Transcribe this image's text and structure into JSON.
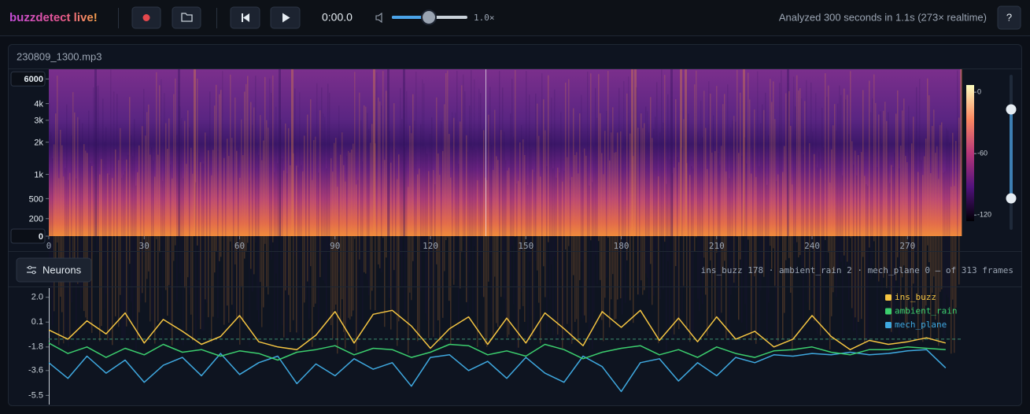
{
  "header": {
    "brand": "buzzdetect live!",
    "time": "0:00.0",
    "speed": "1.0×",
    "status": "Analyzed 300 seconds in 1.1s (273× realtime)",
    "help": "?"
  },
  "spectrogram": {
    "file": "230809_1300.mp3",
    "scale": "mel",
    "xlim": [
      0,
      287
    ],
    "xticks": [
      0,
      30,
      60,
      90,
      120,
      150,
      180,
      210,
      240,
      270
    ],
    "ylim": [
      0,
      7000
    ],
    "yticks": [
      6000,
      {
        "value": 4000,
        "label": "4k"
      },
      {
        "value": 3000,
        "label": "3k"
      },
      {
        "value": 2000,
        "label": "2k"
      },
      {
        "value": 1000,
        "label": "1k"
      },
      500,
      200,
      0
    ],
    "colorbar": {
      "lim": [
        -126,
        7
      ],
      "ticks": [
        0,
        -60,
        -120
      ]
    }
  },
  "neurons": {
    "button": "Neurons",
    "summary": "ins_buzz 178 · ambient_rain 2 · mech_plane 0 — of 313 frames"
  },
  "chart_data": {
    "type": "line",
    "x": [
      0,
      6,
      12,
      18,
      24,
      30,
      36,
      42,
      48,
      54,
      60,
      66,
      72,
      78,
      84,
      90,
      96,
      102,
      108,
      114,
      120,
      126,
      132,
      138,
      144,
      150,
      156,
      162,
      168,
      174,
      180,
      186,
      192,
      198,
      204,
      210,
      216,
      222,
      228,
      234,
      240,
      246,
      252,
      258,
      264,
      270,
      276,
      282
    ],
    "xlim": [
      0,
      287
    ],
    "ylim": [
      -6.2,
      2.7
    ],
    "yticks": [
      {
        "value": 2,
        "label": "2.0"
      },
      0.1,
      -1.8,
      -3.6,
      -5.5
    ],
    "threshold": -1.2,
    "legend": "top-right",
    "series": [
      {
        "name": "ins_buzz",
        "color": "#f5c542",
        "values": [
          -0.5,
          -1.2,
          0.2,
          -0.8,
          0.8,
          -1.5,
          0.3,
          -0.6,
          -1.6,
          -1.0,
          0.6,
          -1.4,
          -1.8,
          -2.0,
          -0.9,
          0.9,
          -1.5,
          0.7,
          1.0,
          -0.2,
          -1.9,
          -0.4,
          0.5,
          -1.6,
          0.4,
          -1.5,
          0.8,
          -0.4,
          -1.7,
          0.9,
          -0.3,
          1.0,
          -1.3,
          0.4,
          -1.4,
          0.5,
          -1.2,
          -0.6,
          -1.8,
          -1.2,
          0.6,
          -1.0,
          -2.0,
          -1.3,
          -1.6,
          -1.4,
          -1.1,
          -1.5
        ]
      },
      {
        "name": "ambient_rain",
        "color": "#3ccf6e",
        "values": [
          -1.5,
          -2.3,
          -1.8,
          -2.6,
          -1.9,
          -2.4,
          -1.6,
          -2.2,
          -2.0,
          -2.5,
          -2.1,
          -2.3,
          -2.8,
          -2.2,
          -2.0,
          -1.7,
          -2.4,
          -1.9,
          -2.0,
          -2.6,
          -2.2,
          -1.6,
          -1.7,
          -2.4,
          -2.1,
          -2.5,
          -1.6,
          -2.0,
          -2.7,
          -2.2,
          -1.9,
          -1.7,
          -2.4,
          -2.0,
          -2.6,
          -1.8,
          -2.3,
          -2.6,
          -2.1,
          -2.0,
          -1.8,
          -2.2,
          -2.4,
          -2.0,
          -2.0,
          -1.8,
          -1.9,
          -2.0
        ]
      },
      {
        "name": "mech_plane",
        "color": "#3fa9e0",
        "values": [
          -3.0,
          -4.2,
          -2.5,
          -3.8,
          -2.8,
          -4.5,
          -3.2,
          -2.6,
          -4.0,
          -2.3,
          -3.9,
          -3.0,
          -2.5,
          -4.6,
          -3.1,
          -4.0,
          -2.7,
          -3.5,
          -3.0,
          -4.8,
          -2.6,
          -2.4,
          -3.6,
          -2.9,
          -4.2,
          -2.6,
          -3.8,
          -4.5,
          -2.5,
          -3.3,
          -5.2,
          -3.0,
          -2.7,
          -4.4,
          -3.0,
          -4.0,
          -2.6,
          -3.0,
          -2.4,
          -2.5,
          -2.3,
          -2.4,
          -2.2,
          -2.4,
          -2.3,
          -2.1,
          -2.0,
          -3.4
        ]
      }
    ]
  }
}
